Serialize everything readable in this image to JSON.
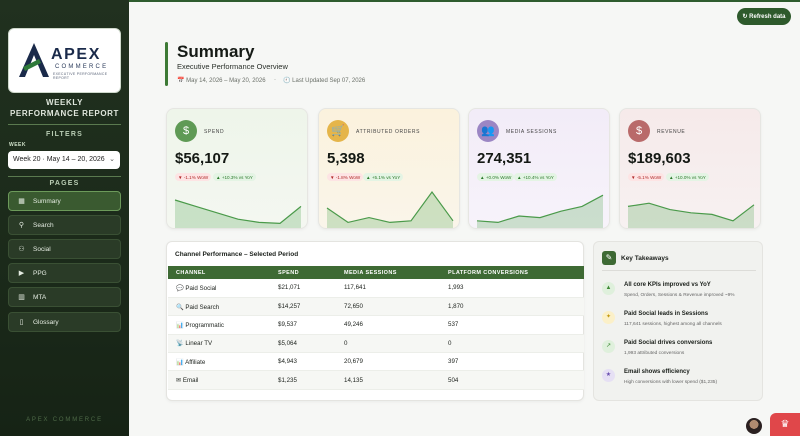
{
  "sidebar": {
    "logo": {
      "name": "APEX",
      "sub": "COMMERCE",
      "tagline": "EXECUTIVE PERFORMANCE REPORT"
    },
    "report_title_1": "WEEKLY",
    "report_title_2": "PERFORMANCE REPORT",
    "filters_label": "FILTERS",
    "week_label": "WEEK",
    "week_value": "Week 20  ·  May 14 – 20, 2026",
    "pages_label": "PAGES",
    "nav": [
      {
        "label": "Summary",
        "icon": "grid-icon"
      },
      {
        "label": "Search",
        "icon": "search-icon"
      },
      {
        "label": "Social",
        "icon": "users-icon"
      },
      {
        "label": "PPG",
        "icon": "video-icon"
      },
      {
        "label": "MTA",
        "icon": "chart-icon"
      },
      {
        "label": "Glossary",
        "icon": "book-icon"
      }
    ],
    "footer": "APEX COMMERCE"
  },
  "header": {
    "refresh_label": "↻ Refresh data",
    "title": "Summary",
    "subtitle": "Executive Performance Overview",
    "date_range": "May 14, 2026 – May 20, 2026",
    "separator": "·",
    "last_updated": "Last Updated Sep 07, 2026"
  },
  "colors": {
    "accent": "#3e6a34",
    "sidebar": "#1f2e1d",
    "negative": "#b22a2a",
    "positive": "#2a7a2a"
  },
  "kpis": [
    {
      "label": "SPEND",
      "value": "$56,107",
      "wow": "▼ -1.1% WoW",
      "yoy": "▲ +10.3% vs YoY",
      "icon": "$",
      "trend": [
        0.75,
        0.55,
        0.35,
        0.15,
        0.05,
        0.02,
        0.55
      ]
    },
    {
      "label": "ATTRIBUTED ORDERS",
      "value": "5,398",
      "wow": "▼ -1.8% WoW",
      "yoy": "▲ +5.1% vs YoY",
      "icon": "🛒",
      "trend": [
        0.5,
        0.05,
        0.2,
        0.05,
        0.1,
        1.0,
        0.1
      ]
    },
    {
      "label": "MEDIA SESSIONS",
      "value": "274,351",
      "wow": "▲ +0.0% WoW",
      "yoy": "▲ +10.4% vs YoY",
      "icon": "👥",
      "trend": [
        0.1,
        0.05,
        0.25,
        0.2,
        0.4,
        0.55,
        0.9
      ]
    },
    {
      "label": "REVENUE",
      "value": "$189,603",
      "wow": "▼ -5.1% WoW",
      "yoy": "▲ +10.0% vs YoY",
      "icon": "$",
      "trend": [
        0.55,
        0.65,
        0.45,
        0.35,
        0.3,
        0.1,
        0.6
      ]
    }
  ],
  "table": {
    "title": "Channel Performance – Selected Period",
    "headers": [
      "CHANNEL",
      "SPEND",
      "MEDIA SESSIONS",
      "PLATFORM CONVERSIONS"
    ],
    "rows": [
      [
        "💬 Paid Social",
        "$21,071",
        "117,641",
        "1,993"
      ],
      [
        "🔍 Paid Search",
        "$14,257",
        "72,650",
        "1,870"
      ],
      [
        "📊 Programmatic",
        "$9,537",
        "49,246",
        "537"
      ],
      [
        "📡 Linear TV",
        "$5,064",
        "0",
        "0"
      ],
      [
        "📊 Affiliate",
        "$4,943",
        "20,679",
        "397"
      ],
      [
        "✉ Email",
        "$1,235",
        "14,135",
        "504"
      ]
    ]
  },
  "takeaways": {
    "title": "Key Takeaways",
    "items": [
      {
        "icon": "▲",
        "title": "All core KPIs improved vs YoY",
        "desc": "Spend, Orders, Sessions & Revenue improved ~9%"
      },
      {
        "icon": "✦",
        "title": "Paid Social leads in Sessions",
        "desc": "117,641 sessions, highest among all channels"
      },
      {
        "icon": "↗",
        "title": "Paid Social drives conversions",
        "desc": "1,993 attributed conversions"
      },
      {
        "icon": "★",
        "title": "Email shows efficiency",
        "desc": "High conversions with lower spend ($1,235)"
      }
    ]
  }
}
